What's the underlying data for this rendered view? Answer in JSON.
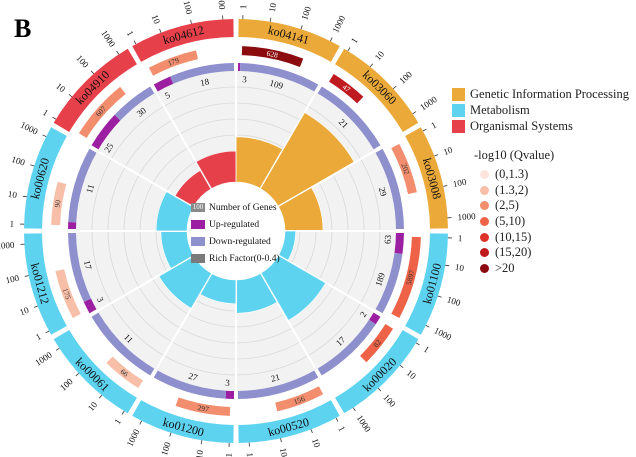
{
  "panel_label": "B",
  "chart_data": {
    "type": "circos-enrichment",
    "title": "",
    "categories_legend": [
      {
        "name": "Genetic Information Processing",
        "color": "#EBA93A"
      },
      {
        "name": "Metabolism",
        "color": "#5DD3F0"
      },
      {
        "name": "Organismal Systems",
        "color": "#E6404A"
      }
    ],
    "qvalue_legend": {
      "title": "-log10 (Qvalue)",
      "bins": [
        {
          "label": "(0,1.3)",
          "color": "#FCE4DC"
        },
        {
          "label": "(1.3,2)",
          "color": "#F8BFA8"
        },
        {
          "label": "(2,5)",
          "color": "#F28E6E"
        },
        {
          "label": "(5,10)",
          "color": "#EE6347"
        },
        {
          "label": "(10,15)",
          "color": "#DD3227"
        },
        {
          "label": "(15,20)",
          "color": "#BE1A1F"
        },
        {
          "label": ">20",
          "color": "#8B0B0E"
        }
      ]
    },
    "track_legend": [
      {
        "label": "Number of Genes",
        "swatch_text": "100",
        "color": "#8A8A8A"
      },
      {
        "label": "Up-regulated",
        "color": "#9B1FA0"
      },
      {
        "label": "Down-regulated",
        "color": "#8E8FCD"
      },
      {
        "label": "Rich Factor(0-0.4)",
        "color": "#7A7A7A"
      }
    ],
    "ticks_outer": [
      "1",
      "10",
      "100",
      "1000"
    ],
    "pathways": [
      {
        "id": "ko04141",
        "category": "Genetic Information Processing",
        "genes": 628,
        "gene_label": "628",
        "qbin": 6,
        "up": 3,
        "down": 109,
        "up_label": "3",
        "down_label": "109",
        "rich": 0.19
      },
      {
        "id": "ko03060",
        "category": "Genetic Information Processing",
        "genes": 47,
        "gene_label": "47",
        "qbin": 5,
        "up": 0,
        "down": 21,
        "up_label": "",
        "down_label": "21",
        "rich": 0.37
      },
      {
        "id": "ko03008",
        "category": "Genetic Information Processing",
        "genes": 202,
        "gene_label": "202",
        "qbin": 2,
        "up": 0,
        "down": 29,
        "up_label": "",
        "down_label": "29",
        "rich": 0.16
      },
      {
        "id": "ko01100",
        "category": "Metabolism",
        "genes": 5897,
        "gene_label": "5897",
        "qbin": 3,
        "up": 63,
        "down": 189,
        "up_label": "63",
        "down_label": "189",
        "rich": 0.045
      },
      {
        "id": "ko00020",
        "category": "Metabolism",
        "genes": 82,
        "gene_label": "82",
        "qbin": 3,
        "up": 2,
        "down": 17,
        "up_label": "2",
        "down_label": "17",
        "rich": 0.23
      },
      {
        "id": "ko00520",
        "category": "Metabolism",
        "genes": 156,
        "gene_label": "156",
        "qbin": 2,
        "up": 0,
        "down": 21,
        "up_label": "",
        "down_label": "21",
        "rich": 0.14
      },
      {
        "id": "ko01200",
        "category": "Metabolism",
        "genes": 297,
        "gene_label": "297",
        "qbin": 2,
        "up": 3,
        "down": 27,
        "up_label": "3",
        "down_label": "27",
        "rich": 0.1
      },
      {
        "id": "ko00061",
        "category": "Metabolism",
        "genes": 66,
        "gene_label": "66",
        "qbin": 1,
        "up": 0,
        "down": 11,
        "up_label": "",
        "down_label": "11",
        "rich": 0.17
      },
      {
        "id": "ko01212",
        "category": "Metabolism",
        "genes": 175,
        "gene_label": "175",
        "qbin": 1,
        "up": 3,
        "down": 17,
        "up_label": "3",
        "down_label": "17",
        "rich": 0.11
      },
      {
        "id": "ko00620",
        "category": "Metabolism",
        "genes": 90,
        "gene_label": "90",
        "qbin": 1,
        "up": 1,
        "down": 11,
        "up_label": "",
        "down_label": "11",
        "rich": 0.13
      },
      {
        "id": "ko04910",
        "category": "Organismal Systems",
        "genes": 607,
        "gene_label": "607",
        "qbin": 2,
        "up": 25,
        "down": 30,
        "up_label": "25",
        "down_label": "30",
        "rich": 0.09
      },
      {
        "id": "ko04612",
        "category": "Organismal Systems",
        "genes": 179,
        "gene_label": "179",
        "qbin": 2,
        "up": 5,
        "down": 18,
        "up_label": "5",
        "down_label": "18",
        "rich": 0.13
      }
    ]
  }
}
